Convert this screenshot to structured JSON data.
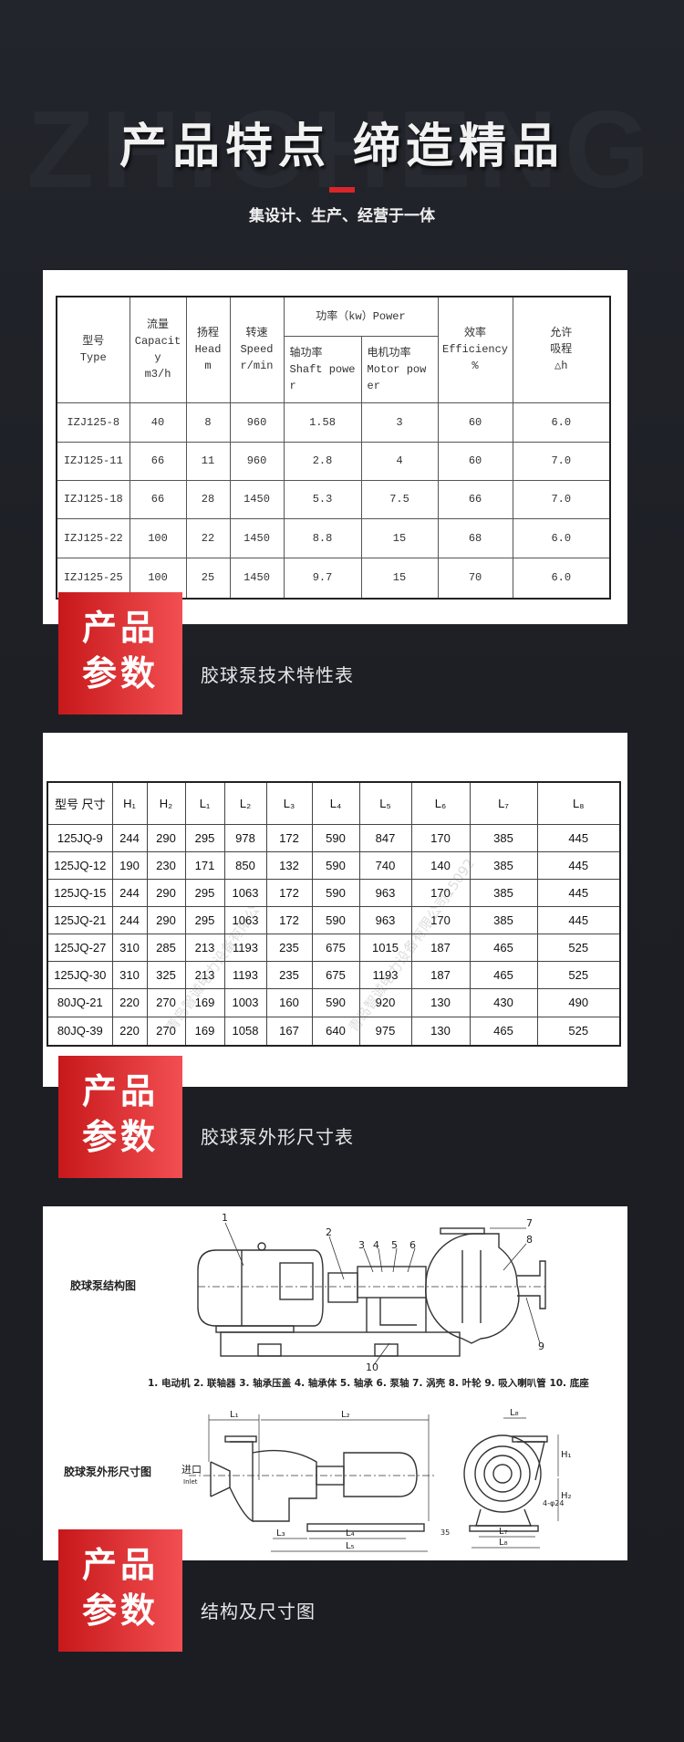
{
  "header": {
    "watermark": "ZHICHENG",
    "title": "产品特点  缔造精品",
    "subtitle": "集设计、生产、经营于一体",
    "accent": "#d8262a"
  },
  "badge_text": {
    "line1": "产品",
    "line2": "参数"
  },
  "section1": {
    "caption": "胶球泵技术特性表",
    "headers": {
      "type": "型号\nType",
      "capacity": "流量\nCapacit\ny\nm3/h",
      "head": "扬程\nHead\nm",
      "speed": "转速\nSpeed\nr/min",
      "power": "功率（kw）Power",
      "shaft": "轴功率\nShaft  powe\nr",
      "motor": "电机功率\nMotor  pow\ner",
      "efficiency": "效率\nEfficiency\n%",
      "suction": "允许\n吸程\n△h"
    },
    "rows": [
      [
        "IZJ125-8",
        "40",
        "8",
        "960",
        "1.58",
        "3",
        "60",
        "6.0"
      ],
      [
        "IZJ125-11",
        "66",
        "11",
        "960",
        "2.8",
        "4",
        "60",
        "7.0"
      ],
      [
        "IZJ125-18",
        "66",
        "28",
        "1450",
        "5.3",
        "7.5",
        "66",
        "7.0"
      ],
      [
        "IZJ125-22",
        "100",
        "22",
        "1450",
        "8.8",
        "15",
        "68",
        "6.0"
      ],
      [
        "IZJ125-25",
        "100",
        "25",
        "1450",
        "9.7",
        "15",
        "70",
        "6.0"
      ]
    ]
  },
  "section2": {
    "caption": "胶球泵外形尺寸表",
    "headers": [
      "型号 尺寸",
      "H₁",
      "H₂",
      "L₁",
      "L₂",
      "L₃",
      "L₄",
      "L₅",
      "L₆",
      "L₇",
      "L₈"
    ],
    "rows": [
      [
        "125JQ-9",
        "244",
        "290",
        "295",
        "978",
        "172",
        "590",
        "847",
        "170",
        "385",
        "445"
      ],
      [
        "125JQ-12",
        "190",
        "230",
        "171",
        "850",
        "132",
        "590",
        "740",
        "140",
        "385",
        "445"
      ],
      [
        "125JQ-15",
        "244",
        "290",
        "295",
        "1063",
        "172",
        "590",
        "963",
        "170",
        "385",
        "445"
      ],
      [
        "125JQ-21",
        "244",
        "290",
        "295",
        "1063",
        "172",
        "590",
        "963",
        "170",
        "385",
        "445"
      ],
      [
        "125JQ-27",
        "310",
        "285",
        "213",
        "1193",
        "235",
        "675",
        "1015",
        "187",
        "465",
        "525"
      ],
      [
        "125JQ-30",
        "310",
        "325",
        "213",
        "1193",
        "235",
        "675",
        "1193",
        "187",
        "465",
        "525"
      ],
      [
        "80JQ-21",
        "220",
        "270",
        "169",
        "1003",
        "160",
        "590",
        "920",
        "130",
        "430",
        "490"
      ],
      [
        "80JQ-39",
        "220",
        "270",
        "169",
        "1058",
        "167",
        "640",
        "975",
        "130",
        "465",
        "525"
      ]
    ],
    "watermarks": [
      "青岛智诚电力设备有限公",
      "青岛智诚电力设备有限公司15092"
    ]
  },
  "section3": {
    "caption": "结构及尺寸图",
    "structure_title": "胶球泵结构图",
    "outline_title": "胶球泵外形尺寸图",
    "part_numbers": [
      "1",
      "2",
      "3",
      "4",
      "5",
      "6",
      "7",
      "8",
      "9",
      "10"
    ],
    "legend": "1. 电动机  2. 联轴器  3. 轴承压盖  4. 轴承体  5. 轴承  6. 泵轴  7. 涡壳  8. 叶轮  9. 吸入喇叭管  10. 底座",
    "inlet": "进口",
    "inlet_en": "Inlet",
    "dims": {
      "L1": "L₁",
      "L2": "L₂",
      "L3": "L₃",
      "L4": "L₄",
      "L5": "L₅",
      "L7": "L₇",
      "L8": "L₈",
      "L8b": "L₈",
      "H1": "H₁",
      "H2": "H₂",
      "bolt": "4-φ24",
      "h35": "35"
    }
  }
}
